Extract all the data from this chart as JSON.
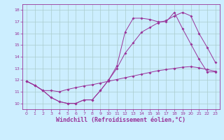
{
  "background_color": "#cceeff",
  "grid_color": "#aacccc",
  "line_color": "#993399",
  "marker_color": "#993399",
  "xlabel": "Windchill (Refroidissement éolien,°C)",
  "xlabel_fontsize": 6.0,
  "xlim": [
    -0.5,
    23.5
  ],
  "ylim": [
    9.5,
    18.5
  ],
  "yticks": [
    10,
    11,
    12,
    13,
    14,
    15,
    16,
    17,
    18
  ],
  "xticks": [
    0,
    1,
    2,
    3,
    4,
    5,
    6,
    7,
    8,
    9,
    10,
    11,
    12,
    13,
    14,
    15,
    16,
    17,
    18,
    19,
    20,
    21,
    22,
    23
  ],
  "line1_x": [
    0,
    1,
    2,
    3,
    4,
    5,
    6,
    7,
    8,
    9,
    10,
    11,
    12,
    13,
    14,
    15,
    16,
    17,
    18,
    19,
    20,
    21,
    22,
    23
  ],
  "line1_y": [
    11.9,
    11.55,
    11.1,
    10.5,
    10.15,
    10.0,
    10.0,
    10.3,
    10.3,
    11.1,
    12.0,
    13.2,
    16.1,
    17.3,
    17.3,
    17.2,
    17.0,
    17.0,
    17.8,
    16.4,
    15.1,
    13.8,
    12.7,
    12.7
  ],
  "line2_x": [
    0,
    1,
    2,
    3,
    4,
    5,
    6,
    7,
    8,
    9,
    10,
    11,
    12,
    13,
    14,
    15,
    16,
    17,
    18,
    19,
    20,
    21,
    22,
    23
  ],
  "line2_y": [
    11.9,
    11.55,
    11.1,
    10.5,
    10.15,
    10.0,
    10.0,
    10.3,
    10.3,
    11.1,
    12.0,
    13.0,
    14.3,
    15.2,
    16.1,
    16.5,
    16.9,
    17.1,
    17.5,
    17.8,
    17.5,
    16.0,
    14.8,
    13.5
  ],
  "line3_x": [
    0,
    1,
    2,
    3,
    4,
    5,
    6,
    7,
    8,
    9,
    10,
    11,
    12,
    13,
    14,
    15,
    16,
    17,
    18,
    19,
    20,
    21,
    22,
    23
  ],
  "line3_y": [
    11.9,
    11.55,
    11.1,
    11.1,
    11.0,
    11.2,
    11.35,
    11.5,
    11.6,
    11.75,
    11.9,
    12.05,
    12.2,
    12.35,
    12.5,
    12.65,
    12.8,
    12.9,
    13.0,
    13.1,
    13.15,
    13.05,
    12.9,
    12.75
  ]
}
